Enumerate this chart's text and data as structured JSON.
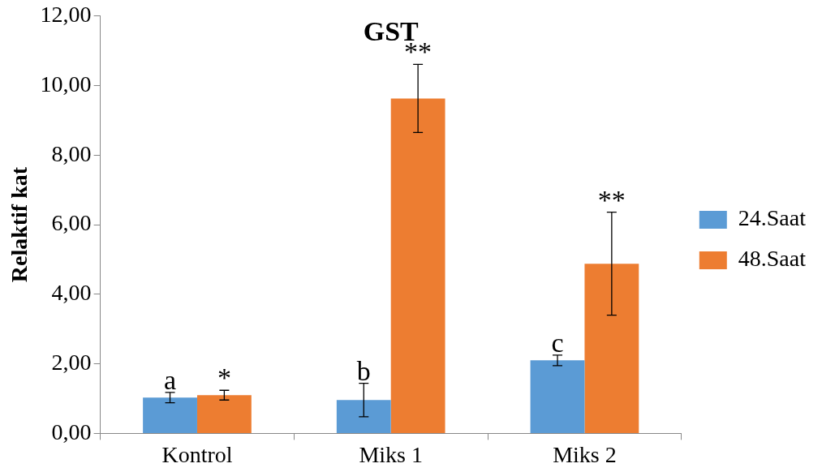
{
  "chart_data": {
    "type": "bar",
    "title": "GST",
    "ylabel": "Relaktif kat",
    "categories": [
      "Kontrol",
      "Miks 1",
      "Miks 2"
    ],
    "series": [
      {
        "name": "24.Saat",
        "color": "#5b9bd5",
        "values": [
          1.03,
          0.96,
          2.1
        ],
        "errors": [
          0.15,
          0.48,
          0.15
        ],
        "value_labels": [
          "a",
          "b",
          "c"
        ]
      },
      {
        "name": "48.Saat",
        "color": "#ed7d31",
        "values": [
          1.1,
          9.63,
          4.88
        ],
        "errors": [
          0.14,
          0.98,
          1.48
        ],
        "value_labels": [
          "*",
          "**",
          "**"
        ]
      }
    ],
    "ylim": [
      0,
      12
    ],
    "yticks": [
      {
        "value": 0,
        "label": "0,00"
      },
      {
        "value": 2,
        "label": "2,00"
      },
      {
        "value": 4,
        "label": "4,00"
      },
      {
        "value": 6,
        "label": "6,00"
      },
      {
        "value": 8,
        "label": "8,00"
      },
      {
        "value": 10,
        "label": "10,00"
      },
      {
        "value": 12,
        "label": "12,00"
      }
    ],
    "grid": false,
    "legend": "right"
  }
}
